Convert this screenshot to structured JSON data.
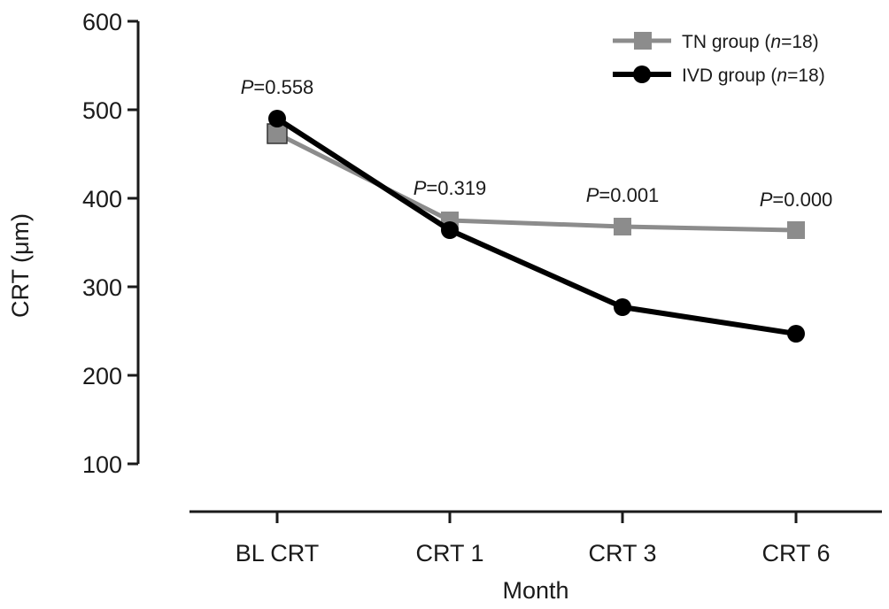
{
  "chart_data": {
    "type": "line",
    "title": "",
    "xlabel": "Month",
    "ylabel": "CRT (μm)",
    "categories": [
      "BL CRT",
      "CRT 1",
      "CRT 3",
      "CRT 6"
    ],
    "ylim": [
      100,
      600
    ],
    "yticks": [
      100,
      200,
      300,
      400,
      500,
      600
    ],
    "grid": false,
    "legend_position": "top-right",
    "series": [
      {
        "name": "TN group (n=18)",
        "name_parts": [
          "TN group (",
          "n",
          "=18)"
        ],
        "values": [
          473,
          375,
          368,
          364
        ],
        "color": "#8c8c8c",
        "marker": "square"
      },
      {
        "name": "IVD group (n=18)",
        "name_parts": [
          "IVD group (",
          "n",
          "=18)"
        ],
        "values": [
          490,
          364,
          277,
          247
        ],
        "color": "#000000",
        "marker": "circle"
      }
    ],
    "annotations": [
      {
        "category": "BL CRT",
        "p_label": "P",
        "value_text": "=0.558"
      },
      {
        "category": "CRT 1",
        "p_label": "P",
        "value_text": "=0.319"
      },
      {
        "category": "CRT 3",
        "p_label": "P",
        "value_text": "=0.001"
      },
      {
        "category": "CRT 6",
        "p_label": "P",
        "value_text": "=0.000"
      }
    ]
  }
}
